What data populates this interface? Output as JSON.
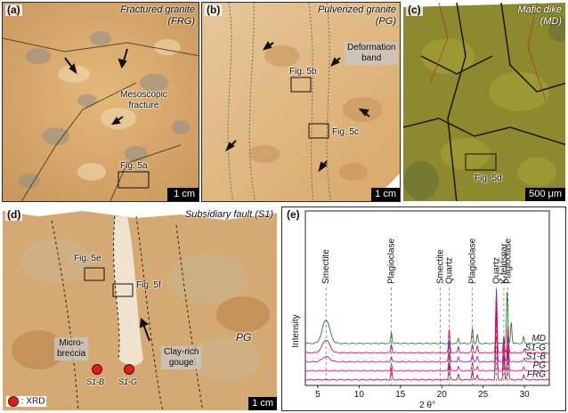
{
  "panels": {
    "a": {
      "label": "(a)",
      "title_line1": "Fractured granite",
      "title_line2": "(FRG)",
      "annotation_fracture_1": "Mesoscopic",
      "annotation_fracture_2": "fracture",
      "fig_ref": "Fig. 5a",
      "scale": "1 cm"
    },
    "b": {
      "label": "(b)",
      "title_line1": "Pulverized granite",
      "title_line2": "(PG)",
      "annotation_band_1": "Deformation",
      "annotation_band_2": "band",
      "fig_ref_1": "Fig. 5b",
      "fig_ref_2": "Fig. 5c",
      "scale": "1 cm"
    },
    "c": {
      "label": "(c)",
      "title_line1": "Mafic dike",
      "title_line2": "(MD)",
      "fig_ref": "Fig. 5d",
      "scale": "500 μm"
    },
    "d": {
      "label": "(d)",
      "title": "Subsidiary fault (S1)",
      "fig_ref_1": "Fig. 5e",
      "fig_ref_2": "Fig. 5f",
      "micro_1": "Micro-",
      "micro_2": "breccia",
      "gouge_1": "Clay-rich",
      "gouge_2": "gouge",
      "pg": "PG",
      "sample_1": "S1-B",
      "sample_2": "S1-G",
      "legend": ": XRD",
      "scale": "1 cm"
    },
    "e": {
      "label": "(e)"
    }
  },
  "colors": {
    "granite": "#d8a86a",
    "dike": "#8a8a2a",
    "xrd_dot": "#d81e1e"
  },
  "chart_data": {
    "type": "line",
    "xlabel": "2 θ°",
    "ylabel": "Intensity",
    "xlim": [
      3.5,
      33
    ],
    "xticks": [
      5,
      10,
      15,
      20,
      25,
      30
    ],
    "peak_labels": [
      {
        "text": "Smectite",
        "x": 6.0
      },
      {
        "text": "Plagioclase",
        "x": 13.9
      },
      {
        "text": "Smectite",
        "x": 19.8
      },
      {
        "text": "Quartz",
        "x": 20.9
      },
      {
        "text": "Plagioclase",
        "x": 23.7
      },
      {
        "text": "Quartz",
        "x": 26.6
      },
      {
        "text": "K-feldspar",
        "x": 27.5
      },
      {
        "text": "Plagioclase",
        "x": 28.0
      }
    ],
    "series": [
      {
        "name": "MD",
        "color": "#2e7d32",
        "base": 0.9,
        "peaks": [
          [
            6.0,
            0.55
          ],
          [
            13.9,
            0.25
          ],
          [
            22.0,
            0.12
          ],
          [
            23.7,
            0.35
          ],
          [
            24.3,
            0.2
          ],
          [
            26.6,
            0.12
          ],
          [
            27.9,
            1.2
          ],
          [
            28.4,
            0.5
          ],
          [
            29.9,
            0.15
          ]
        ]
      },
      {
        "name": "S1-G",
        "color": "#c2185b",
        "base": 0.68,
        "peaks": [
          [
            6.0,
            0.3
          ],
          [
            13.9,
            0.2
          ],
          [
            20.9,
            0.55
          ],
          [
            22.0,
            0.15
          ],
          [
            23.7,
            0.2
          ],
          [
            24.3,
            0.15
          ],
          [
            26.6,
            1.5
          ],
          [
            27.5,
            0.4
          ],
          [
            28.0,
            0.6
          ],
          [
            30.0,
            0.1
          ]
        ]
      },
      {
        "name": "S1-B",
        "color": "#9c27b0",
        "base": 0.47,
        "peaks": [
          [
            6.0,
            0.12
          ],
          [
            13.9,
            0.12
          ],
          [
            20.9,
            0.5
          ],
          [
            22.0,
            0.12
          ],
          [
            23.7,
            0.18
          ],
          [
            24.3,
            0.12
          ],
          [
            26.6,
            1.6
          ],
          [
            27.5,
            0.45
          ],
          [
            28.0,
            0.6
          ],
          [
            30.0,
            0.1
          ]
        ]
      },
      {
        "name": "PG",
        "color": "#e91e63",
        "base": 0.26,
        "peaks": [
          [
            13.9,
            0.15
          ],
          [
            20.9,
            0.4
          ],
          [
            22.0,
            0.1
          ],
          [
            23.7,
            0.2
          ],
          [
            24.3,
            0.1
          ],
          [
            26.6,
            1.7
          ],
          [
            27.5,
            0.5
          ],
          [
            28.0,
            0.6
          ],
          [
            29.9,
            0.1
          ]
        ]
      },
      {
        "name": "FRG",
        "color": "#ad1457",
        "base": 0.05,
        "peaks": [
          [
            13.9,
            0.25
          ],
          [
            20.9,
            0.35
          ],
          [
            22.0,
            0.12
          ],
          [
            23.7,
            0.22
          ],
          [
            24.3,
            0.12
          ],
          [
            26.6,
            1.8
          ],
          [
            27.5,
            0.55
          ],
          [
            28.0,
            0.7
          ],
          [
            29.9,
            0.12
          ]
        ]
      }
    ]
  }
}
